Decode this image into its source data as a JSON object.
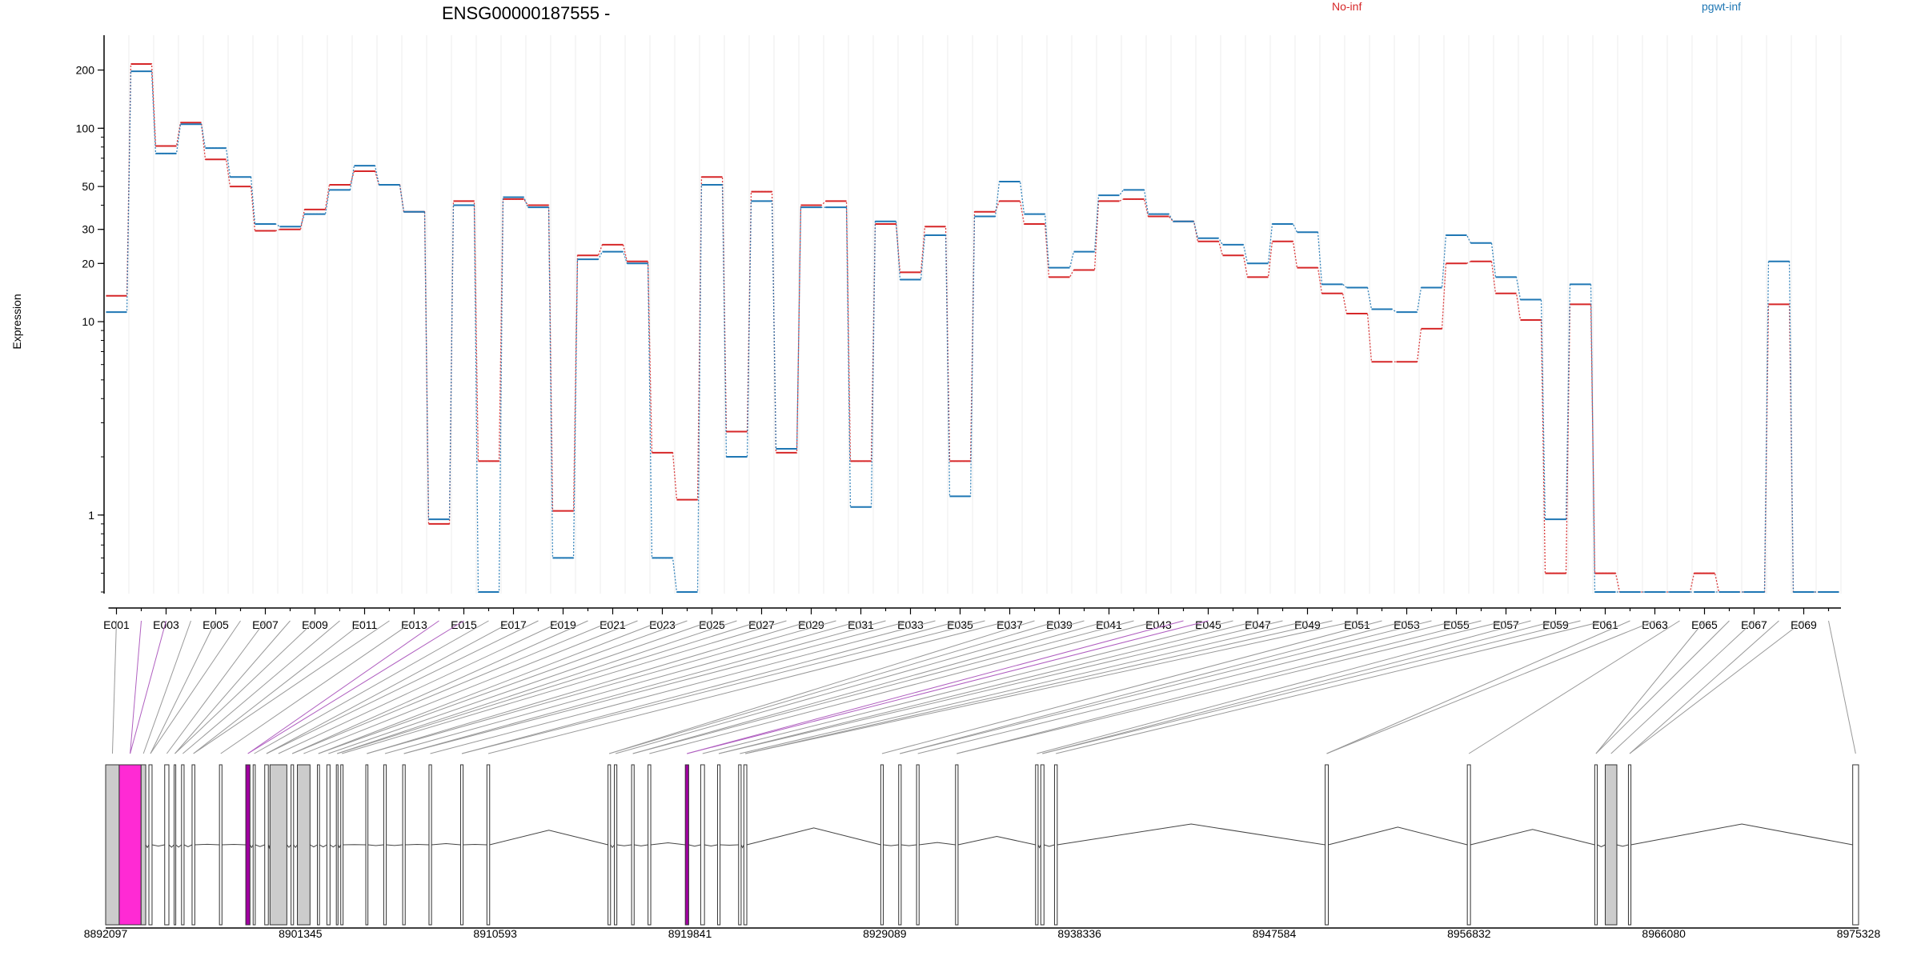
{
  "title": "ENSG00000187555 -",
  "legend": [
    {
      "name": "No-inf",
      "color": "#d62728"
    },
    {
      "name": "pgwt-inf",
      "color": "#1f77b4"
    }
  ],
  "chart_data": {
    "type": "line",
    "ylabel": "Expression",
    "yscale": "log",
    "ylim": [
      0.4,
      260
    ],
    "yticks": [
      1,
      10,
      20,
      30,
      50,
      100,
      200
    ],
    "categories": [
      "E001",
      "E002",
      "E003",
      "E004",
      "E005",
      "E006",
      "E007",
      "E008",
      "E009",
      "E010",
      "E011",
      "E012",
      "E013",
      "E014",
      "E015",
      "E016",
      "E017",
      "E018",
      "E019",
      "E020",
      "E021",
      "E022",
      "E023",
      "E024",
      "E025",
      "E026",
      "E027",
      "E028",
      "E029",
      "E030",
      "E031",
      "E032",
      "E033",
      "E034",
      "E035",
      "E036",
      "E037",
      "E038",
      "E039",
      "E040",
      "E041",
      "E042",
      "E043",
      "E044",
      "E045",
      "E046",
      "E047",
      "E048",
      "E049",
      "E050",
      "E051",
      "E052",
      "E053",
      "E054",
      "E055",
      "E056",
      "E057",
      "E058",
      "E059",
      "E060",
      "E061",
      "E062",
      "E063",
      "E064",
      "E065",
      "E066",
      "E067",
      "E068",
      "E069",
      "E070"
    ],
    "xtick_labels": [
      "E001",
      "E003",
      "E005",
      "E007",
      "E009",
      "E011",
      "E013",
      "E015",
      "E017",
      "E019",
      "E021",
      "E023",
      "E025",
      "E027",
      "E029",
      "E031",
      "E033",
      "E035",
      "E037",
      "E039",
      "E041",
      "E043",
      "E045",
      "E047",
      "E049",
      "E051",
      "E053",
      "E055",
      "E057",
      "E059",
      "E061",
      "E063",
      "E065",
      "E067",
      "E069"
    ],
    "series": [
      {
        "name": "No-inf",
        "color": "#d62728",
        "values": [
          13.6,
          215,
          81,
          107,
          69,
          50,
          29.5,
          30,
          38,
          51,
          60,
          51,
          37,
          0.9,
          42,
          1.9,
          43,
          40,
          1.05,
          22,
          25,
          20.5,
          2.1,
          1.2,
          56,
          2.7,
          47,
          2.1,
          40,
          42,
          1.9,
          32,
          18,
          31,
          1.9,
          37,
          42,
          32,
          17,
          18.5,
          42,
          43,
          35,
          33,
          26,
          22,
          17,
          26,
          19,
          14,
          11,
          6.2,
          6.2,
          9.2,
          20,
          20.5,
          14,
          10.2,
          0.5,
          12.3,
          0.5,
          0.4,
          0.4,
          0.4,
          0.5,
          0.4,
          0.4,
          12.3,
          0.4,
          0.4
        ]
      },
      {
        "name": "pgwt-inf",
        "color": "#1f77b4",
        "values": [
          11.2,
          197,
          74,
          105,
          79,
          56,
          32,
          31,
          36,
          48,
          64,
          51,
          37,
          0.95,
          40,
          0.4,
          44,
          39,
          0.6,
          21,
          23,
          20,
          0.6,
          0.4,
          51,
          2,
          42,
          2.2,
          39,
          39,
          1.1,
          33,
          16.5,
          28,
          1.25,
          35,
          53,
          36,
          19,
          23,
          45,
          48,
          36,
          33,
          27,
          25,
          20,
          32,
          29,
          15.6,
          15,
          11.6,
          11.2,
          15,
          28,
          25.5,
          17,
          13,
          0.95,
          15.6,
          0.4,
          0.4,
          0.4,
          0.4,
          0.4,
          0.4,
          0.4,
          20.5,
          0.4,
          0.4
        ]
      }
    ]
  },
  "gene_model": {
    "coordinate_labels": [
      "8892097",
      "8901345",
      "8910593",
      "8919841",
      "8929089",
      "8938336",
      "8947584",
      "8956832",
      "8966080",
      "8975328"
    ],
    "coord_range": [
      8892097,
      8975328
    ],
    "exons": [
      {
        "start": 8892097,
        "end": 8892740,
        "fill": "#cccccc"
      },
      {
        "start": 8892740,
        "end": 8893780,
        "fill": "#ff2ad4"
      },
      {
        "start": 8893780,
        "end": 8894000,
        "fill": "#cccccc"
      },
      {
        "start": 8894150,
        "end": 8894300,
        "fill": "#ffffff"
      },
      {
        "start": 8894900,
        "end": 8895100,
        "fill": "#ffffff"
      },
      {
        "start": 8895350,
        "end": 8895420,
        "fill": "#ffffff"
      },
      {
        "start": 8895700,
        "end": 8895820,
        "fill": "#ffffff"
      },
      {
        "start": 8896200,
        "end": 8896330,
        "fill": "#ffffff"
      },
      {
        "start": 8897500,
        "end": 8897620,
        "fill": "#ffffff"
      },
      {
        "start": 8898750,
        "end": 8898950,
        "fill": "#a000a0"
      },
      {
        "start": 8899100,
        "end": 8899200,
        "fill": "#ffffff"
      },
      {
        "start": 8899650,
        "end": 8899820,
        "fill": "#ffffff"
      },
      {
        "start": 8899900,
        "end": 8900700,
        "fill": "#cccccc"
      },
      {
        "start": 8900900,
        "end": 8901020,
        "fill": "#ffffff"
      },
      {
        "start": 8901200,
        "end": 8901800,
        "fill": "#cccccc"
      },
      {
        "start": 8902150,
        "end": 8902250,
        "fill": "#ffffff"
      },
      {
        "start": 8902600,
        "end": 8902750,
        "fill": "#ffffff"
      },
      {
        "start": 8903050,
        "end": 8903130,
        "fill": "#ffffff"
      },
      {
        "start": 8903260,
        "end": 8903370,
        "fill": "#ffffff"
      },
      {
        "start": 8904450,
        "end": 8904550,
        "fill": "#ffffff"
      },
      {
        "start": 8905300,
        "end": 8905420,
        "fill": "#ffffff"
      },
      {
        "start": 8906200,
        "end": 8906320,
        "fill": "#ffffff"
      },
      {
        "start": 8907450,
        "end": 8907570,
        "fill": "#ffffff"
      },
      {
        "start": 8908950,
        "end": 8909070,
        "fill": "#ffffff"
      },
      {
        "start": 8910200,
        "end": 8910330,
        "fill": "#ffffff"
      },
      {
        "start": 8915950,
        "end": 8916070,
        "fill": "#ffffff"
      },
      {
        "start": 8916250,
        "end": 8916370,
        "fill": "#ffffff"
      },
      {
        "start": 8917070,
        "end": 8917190,
        "fill": "#ffffff"
      },
      {
        "start": 8917850,
        "end": 8917980,
        "fill": "#ffffff"
      },
      {
        "start": 8919620,
        "end": 8919780,
        "fill": "#a000a0"
      },
      {
        "start": 8920350,
        "end": 8920530,
        "fill": "#ffffff"
      },
      {
        "start": 8921150,
        "end": 8921270,
        "fill": "#ffffff"
      },
      {
        "start": 8922150,
        "end": 8922270,
        "fill": "#ffffff"
      },
      {
        "start": 8922400,
        "end": 8922540,
        "fill": "#ffffff"
      },
      {
        "start": 8928900,
        "end": 8929020,
        "fill": "#ffffff"
      },
      {
        "start": 8929750,
        "end": 8929870,
        "fill": "#ffffff"
      },
      {
        "start": 8930600,
        "end": 8930720,
        "fill": "#ffffff"
      },
      {
        "start": 8932450,
        "end": 8932570,
        "fill": "#ffffff"
      },
      {
        "start": 8936250,
        "end": 8936370,
        "fill": "#ffffff"
      },
      {
        "start": 8936500,
        "end": 8936650,
        "fill": "#ffffff"
      },
      {
        "start": 8937150,
        "end": 8937280,
        "fill": "#ffffff"
      },
      {
        "start": 8950000,
        "end": 8950150,
        "fill": "#ffffff"
      },
      {
        "start": 8956750,
        "end": 8956900,
        "fill": "#ffffff"
      },
      {
        "start": 8962800,
        "end": 8962920,
        "fill": "#ffffff"
      },
      {
        "start": 8963300,
        "end": 8963850,
        "fill": "#cccccc"
      },
      {
        "start": 8964400,
        "end": 8964520,
        "fill": "#ffffff"
      },
      {
        "start": 8975050,
        "end": 8975328,
        "fill": "#ffffff"
      }
    ]
  }
}
